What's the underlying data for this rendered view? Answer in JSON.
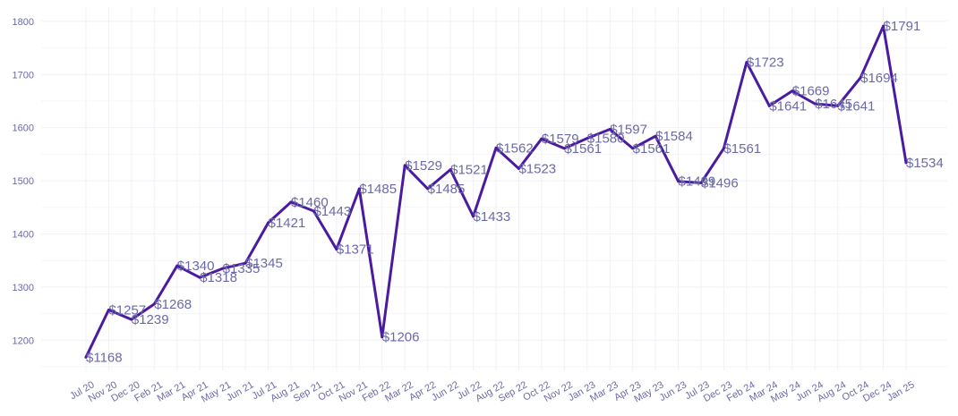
{
  "colors": {
    "line": "#4a1aa0",
    "text": "#6a6aa8",
    "grid": "#f1f1f6"
  },
  "chart_data": {
    "type": "line",
    "title": "",
    "xlabel": "",
    "ylabel": "",
    "ylim": [
      1150,
      1820
    ],
    "y_ticks": [
      1200,
      1300,
      1400,
      1500,
      1600,
      1700,
      1800
    ],
    "grid": true,
    "legend": "none",
    "label_prefix": "$",
    "categories": [
      "Jul 20",
      "Nov 20",
      "Dec 20",
      "Feb 21",
      "Mar 21",
      "Apr 21",
      "May 21",
      "Jun 21",
      "Jul 21",
      "Aug 21",
      "Sep 21",
      "Oct 21",
      "Nov 21",
      "Feb 22",
      "Mar 22",
      "Apr 22",
      "Jun 22",
      "Jul 22",
      "Aug 22",
      "Sep 22",
      "Oct 22",
      "Nov 22",
      "Jan 23",
      "Mar 23",
      "Apr 23",
      "May 23",
      "Jun 23",
      "Jul 23",
      "Dec 23",
      "Feb 24",
      "Mar 24",
      "May 24",
      "Jun 24",
      "Aug 24",
      "Oct 24",
      "Dec 24",
      "Jan 25"
    ],
    "series": [
      {
        "values": [
          1168,
          1257,
          1239,
          1268,
          1340,
          1318,
          1335,
          1345,
          1421,
          1460,
          1443,
          1371,
          1485,
          1206,
          1529,
          1485,
          1521,
          1433,
          1562,
          1523,
          1579,
          1561,
          1580,
          1597,
          1561,
          1584,
          1499,
          1496,
          1561,
          1723,
          1641,
          1669,
          1645,
          1641,
          1694,
          1791,
          1534
        ]
      }
    ]
  }
}
